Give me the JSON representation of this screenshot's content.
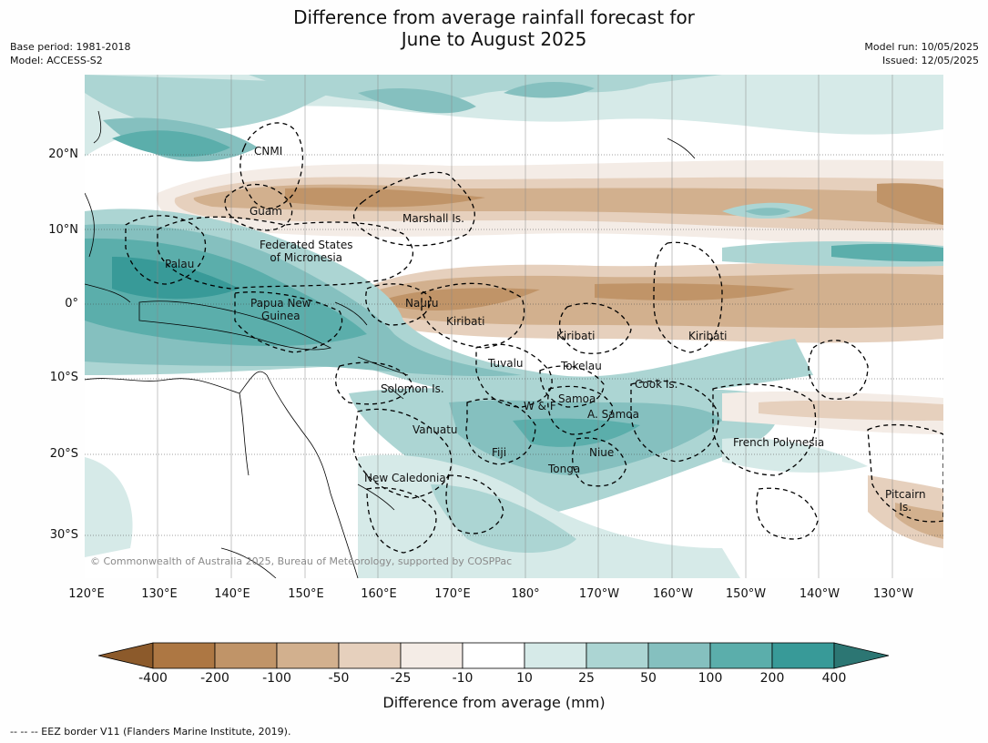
{
  "title": "Difference from average rainfall forecast for\nJune to August 2025",
  "meta_left": [
    "Base period: 1981-2018",
    "Model: ACCESS-S2"
  ],
  "meta_right": [
    "Model run: 10/05/2025",
    "Issued: 12/05/2025"
  ],
  "lat_labels": [
    "20°N",
    "10°N",
    "0°",
    "10°S",
    "20°S",
    "30°S"
  ],
  "lon_labels": [
    "120°E",
    "130°E",
    "140°E",
    "150°E",
    "160°E",
    "170°E",
    "180°",
    "170°W",
    "160°W",
    "150°W",
    "140°W",
    "130°W"
  ],
  "places": [
    "CNMI",
    "Guam",
    "Marshall Is.",
    "Federated States\nof Micronesia",
    "Palau",
    "Papua New\nGuinea",
    "Nauru",
    "Kiribati",
    "Kiribati",
    "Kiribati",
    "Tuvalu",
    "Tokelau",
    "Solomon Is.",
    "Samoa",
    "W & F",
    "A. Samoa",
    "Cook Is.",
    "Vanuatu",
    "Fiji",
    "Niue",
    "Tonga",
    "French Polynesia",
    "New Caledonia",
    "Pitcairn\nIs."
  ],
  "copyright": "© Commonwealth of Australia 2025, Bureau of Meteorology, supported by COSPPac",
  "colorbar": {
    "ticks": [
      "-400",
      "-200",
      "-100",
      "-50",
      "-25",
      "-10",
      "10",
      "25",
      "50",
      "100",
      "200",
      "400"
    ],
    "colors": [
      "#8c5a2b",
      "#ad7743",
      "#c09468",
      "#d2b08e",
      "#e6d0bd",
      "#f4ece6",
      "#ffffff",
      "#d6eae8",
      "#acd5d3",
      "#85c0bf",
      "#5baeab",
      "#389a98",
      "#2c7673"
    ],
    "label": "Difference from average (mm)"
  },
  "footnote": "--  --  -- EEZ border V11 (Flanders Marine Institute, 2019)."
}
